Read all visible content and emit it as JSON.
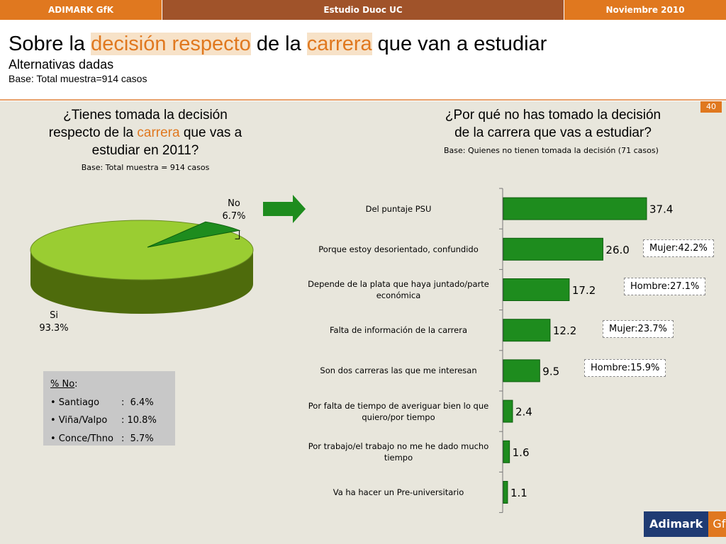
{
  "topbar": {
    "left": "ADIMARK GfK",
    "center": "Estudio Duoc UC",
    "right": "Noviembre 2010"
  },
  "header": {
    "title_part1": "Sobre la ",
    "title_hl1": "decisión respecto",
    "title_part2": " de la ",
    "title_hl2": "carrera",
    "title_part3": " que van a estudiar",
    "subtitle": "Alternativas dadas",
    "base": "Base: Total muestra=914 casos"
  },
  "page_number": "40",
  "left_question": {
    "text1": "¿Tienes tomada la decisión",
    "text2a": "respecto de la ",
    "text2hl": "carrera",
    "text2b": " que vas a",
    "text3": "estudiar en 2011?",
    "base": "Base: Total muestra = 914 casos"
  },
  "right_question": {
    "text1": "¿Por qué no has tomado la decisión",
    "text2": "de la carrera que vas a estudiar?",
    "base": "Base: Quienes no tienen tomada la decisión (71 casos)"
  },
  "box": {
    "title": "% No",
    "colon": ":",
    "rows": [
      {
        "name": "• Santiago",
        "value": ":  6.4%"
      },
      {
        "name": "• Viña/Valpo",
        "value": ": 10.8%"
      },
      {
        "name": "• Conce/Thno",
        "value": ":  5.7%"
      }
    ]
  },
  "notes": [
    "Mujer:42.2%",
    "Hombre:27.1%",
    "Mujer:23.7%",
    "Hombre:15.9%"
  ],
  "logo": {
    "a": "Adimark",
    "g": "GfK"
  },
  "colors": {
    "orange": "#e0781f",
    "pie_si": "#9acd32",
    "pie_no": "#1e8c1e",
    "bar": "#1e8c1e"
  },
  "chart_data": [
    {
      "type": "pie",
      "title": "¿Tienes tomada la decisión respecto de la carrera que vas a estudiar en 2011?",
      "slices": [
        {
          "label": "Si",
          "value": 93.3,
          "display": "93.3%"
        },
        {
          "label": "No",
          "value": 6.7,
          "display": "6.7%"
        }
      ]
    },
    {
      "type": "bar",
      "orientation": "horizontal",
      "title": "¿Por qué no has tomado la decisión de la carrera que vas a estudiar?",
      "xlim": [
        0,
        40
      ],
      "categories": [
        [
          "Del puntaje PSU"
        ],
        [
          "Porque estoy desorientado, confundido"
        ],
        [
          "Depende de la plata que haya juntado/parte",
          "económica"
        ],
        [
          "Falta de información de la carrera"
        ],
        [
          "Son dos carreras las que me interesan"
        ],
        [
          "Por falta de tiempo de averiguar bien lo que",
          "quiero/por tiempo"
        ],
        [
          "Por trabajo/el trabajo no me he dado mucho",
          "tiempo"
        ],
        [
          "Va ha hacer un Pre-universitario"
        ]
      ],
      "values": [
        37.4,
        26.0,
        17.2,
        12.2,
        9.5,
        2.4,
        1.6,
        1.1
      ],
      "labels": [
        "37.4",
        "26.0",
        "17.2",
        "12.2",
        "9.5",
        "2.4",
        "1.6",
        "1.1"
      ]
    }
  ]
}
